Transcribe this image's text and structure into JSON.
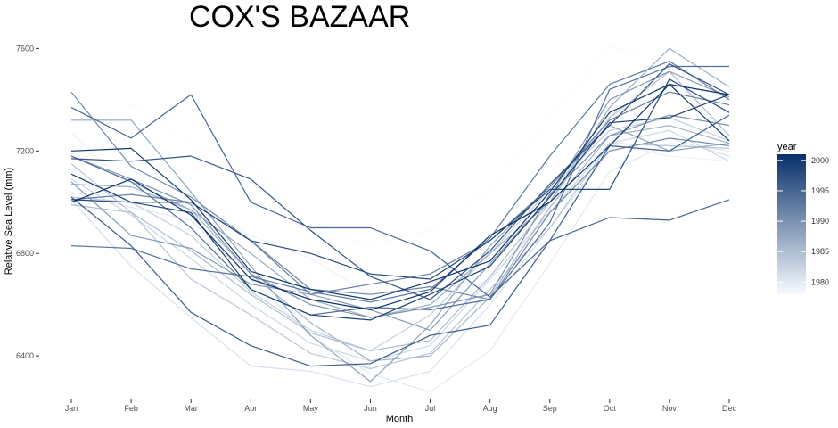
{
  "chart_data": {
    "type": "line",
    "title": "COX'S BAZAAR",
    "xlabel": "Month",
    "ylabel": "Relative Sea Level (mm)",
    "categories": [
      "Jan",
      "Feb",
      "Mar",
      "Apr",
      "May",
      "Jun",
      "Jul",
      "Aug",
      "Sep",
      "Oct",
      "Nov",
      "Dec"
    ],
    "ylim": [
      6230,
      7650
    ],
    "yticks": [
      6400,
      6800,
      7200,
      7600
    ],
    "grid": false,
    "legend": {
      "title": "year",
      "position": "right",
      "type": "continuous",
      "range": [
        1978,
        2001
      ],
      "ticks": [
        1980,
        1985,
        1990,
        1995,
        2000
      ],
      "color_low": "#f7fbff",
      "color_high": "#08306b"
    },
    "series": [
      {
        "year": 1978,
        "values": [
          7110,
          7380,
          7230,
          7150,
          6900,
          6830,
          6890,
          7050,
          7330,
          7610,
          7540,
          7470
        ]
      },
      {
        "year": 1979,
        "values": [
          7270,
          7050,
          6980,
          6870,
          6780,
          6640,
          6600,
          6700,
          6950,
          7230,
          7180,
          7160
        ]
      },
      {
        "year": 1980,
        "values": [
          7040,
          6980,
          6930,
          6700,
          6480,
          6330,
          6260,
          6420,
          6760,
          7120,
          7230,
          7200
        ]
      },
      {
        "year": 1981,
        "values": [
          7010,
          6750,
          6550,
          6360,
          6340,
          6280,
          6340,
          6600,
          6900,
          7200,
          7250,
          7180
        ]
      },
      {
        "year": 1982,
        "values": [
          7090,
          6950,
          6780,
          6600,
          6450,
          6380,
          6440,
          6700,
          6960,
          7230,
          7280,
          7160
        ]
      },
      {
        "year": 1983,
        "values": [
          7020,
          7000,
          6870,
          6650,
          6500,
          6420,
          6560,
          6800,
          7050,
          7280,
          7330,
          7240
        ]
      },
      {
        "year": 1984,
        "values": [
          7150,
          6960,
          6700,
          6560,
          6410,
          6350,
          6410,
          6660,
          6900,
          7230,
          7220,
          7210
        ]
      },
      {
        "year": 1985,
        "values": [
          6990,
          6960,
          6810,
          6640,
          6490,
          6420,
          6460,
          6710,
          7000,
          7330,
          7510,
          7260
        ]
      },
      {
        "year": 1986,
        "values": [
          7180,
          7080,
          6970,
          6720,
          6530,
          6380,
          6400,
          6630,
          6980,
          7260,
          7300,
          7230
        ]
      },
      {
        "year": 1987,
        "values": [
          7070,
          7060,
          6970,
          6800,
          6620,
          6550,
          6600,
          6800,
          7000,
          7370,
          7600,
          7450
        ]
      },
      {
        "year": 1988,
        "values": [
          7320,
          7320,
          7040,
          6750,
          6480,
          6300,
          6520,
          6830,
          7060,
          7300,
          7200,
          7230
        ]
      },
      {
        "year": 1989,
        "values": [
          7080,
          6870,
          6820,
          6680,
          6640,
          6580,
          6500,
          6760,
          7020,
          7400,
          7510,
          7410
        ]
      },
      {
        "year": 1990,
        "values": [
          7180,
          7090,
          6990,
          6720,
          6600,
          6550,
          6590,
          6640,
          7030,
          7260,
          7340,
          7300
        ]
      },
      {
        "year": 1991,
        "values": [
          7430,
          7140,
          7020,
          6850,
          6660,
          6640,
          6670,
          6620,
          6960,
          7200,
          7250,
          7220
        ]
      },
      {
        "year": 1992,
        "values": [
          7010,
          7030,
          7000,
          6850,
          6640,
          6680,
          6720,
          6850,
          7060,
          7320,
          7430,
          7380
        ]
      },
      {
        "year": 1993,
        "values": [
          6830,
          6820,
          6740,
          6710,
          6650,
          6610,
          6660,
          6860,
          7180,
          7460,
          7550,
          7400
        ]
      },
      {
        "year": 1994,
        "values": [
          7180,
          7080,
          6900,
          6660,
          6560,
          6590,
          6580,
          6620,
          6920,
          7440,
          7530,
          7530
        ]
      },
      {
        "year": 1995,
        "values": [
          7370,
          7250,
          7420,
          7000,
          6900,
          6900,
          6810,
          6630,
          6850,
          6940,
          6930,
          7010
        ]
      },
      {
        "year": 1996,
        "values": [
          7020,
          6830,
          6570,
          6440,
          6360,
          6370,
          6480,
          6520,
          6850,
          7220,
          7200,
          7340
        ]
      },
      {
        "year": 1997,
        "values": [
          7170,
          7160,
          7180,
          7090,
          6890,
          6710,
          6620,
          6810,
          7070,
          7300,
          7540,
          7420
        ]
      },
      {
        "year": 1998,
        "values": [
          7010,
          7000,
          7000,
          6850,
          6800,
          6720,
          6700,
          6850,
          7050,
          7050,
          7480,
          7350
        ]
      },
      {
        "year": 1999,
        "values": [
          7110,
          7000,
          6960,
          6660,
          6560,
          6540,
          6640,
          6750,
          7020,
          7310,
          7330,
          7420
        ]
      },
      {
        "year": 2000,
        "values": [
          7200,
          7210,
          7010,
          6730,
          6660,
          6620,
          6690,
          6770,
          7040,
          7350,
          7460,
          7240
        ]
      },
      {
        "year": 2001,
        "values": [
          7000,
          7090,
          6950,
          6700,
          6620,
          6580,
          6650,
          6870,
          7000,
          7220,
          7460,
          7420
        ]
      }
    ]
  }
}
